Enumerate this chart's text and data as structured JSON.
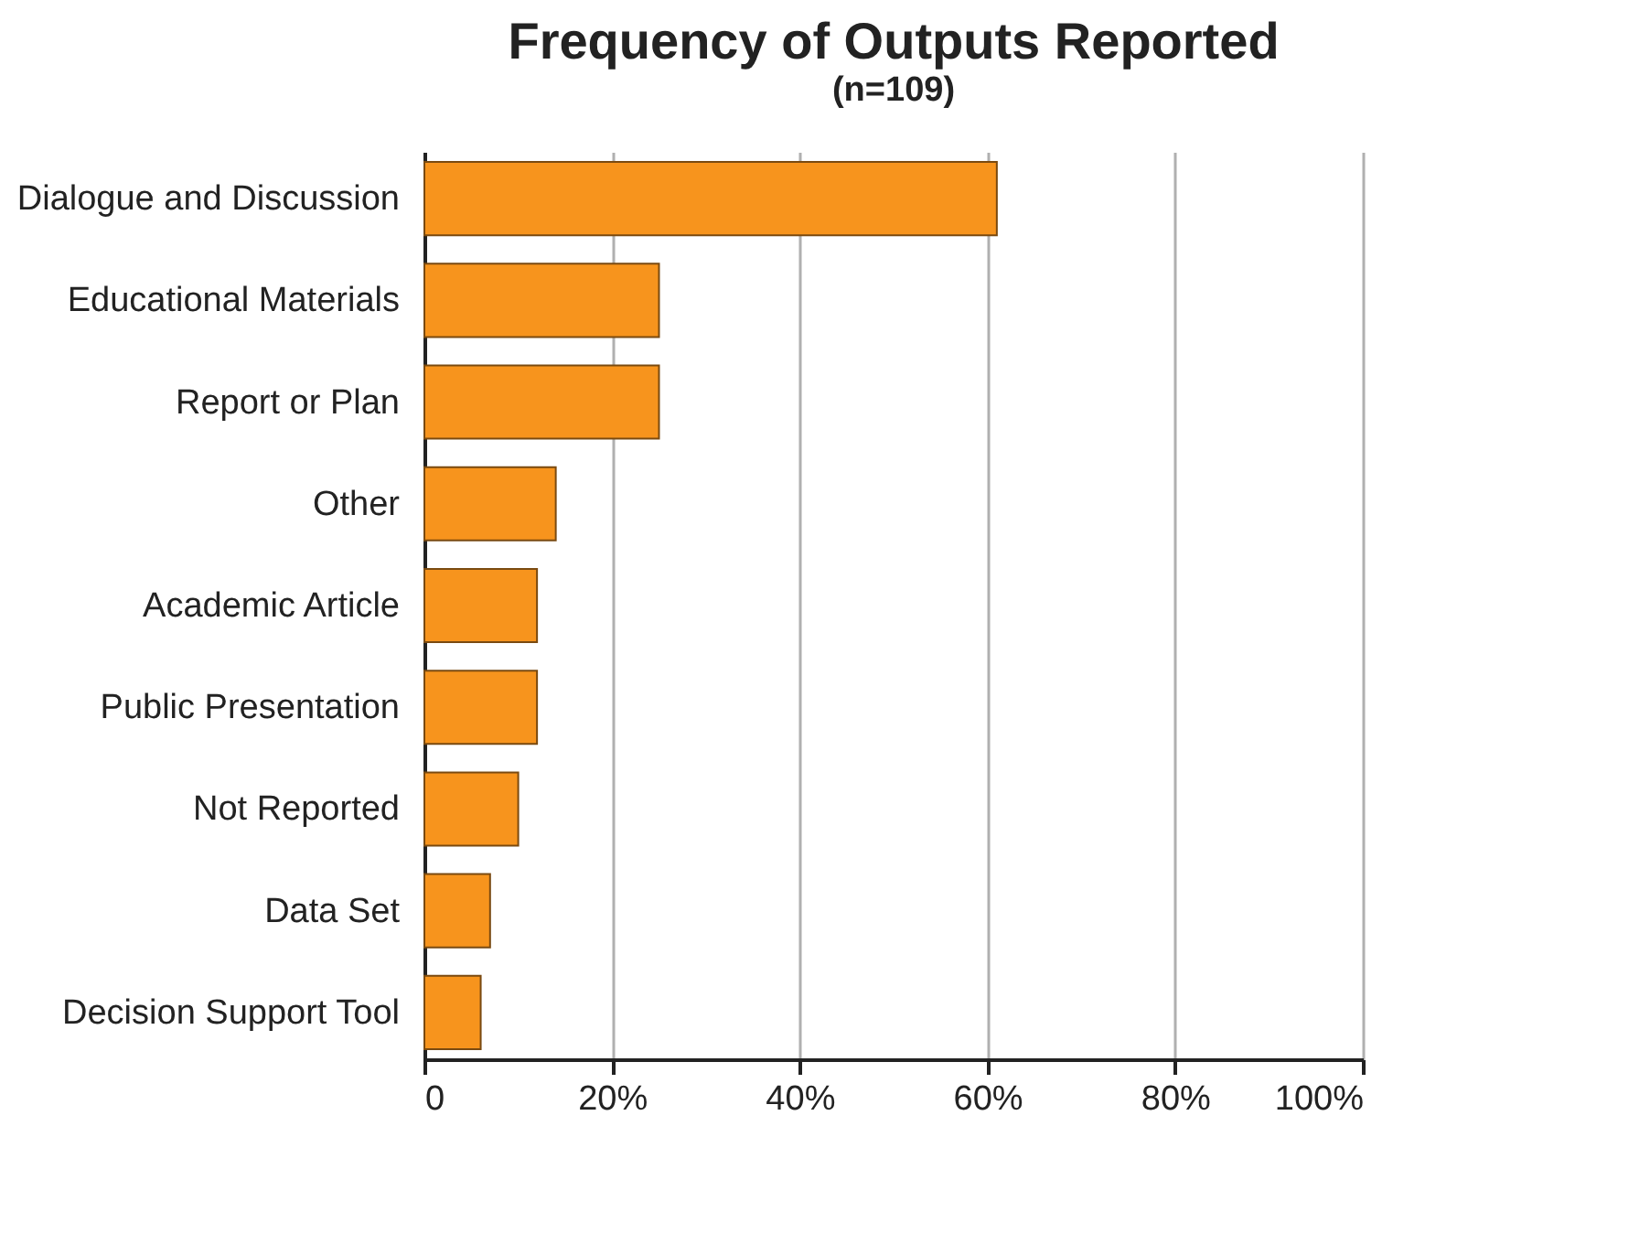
{
  "chart_data": {
    "type": "bar",
    "orientation": "horizontal",
    "title": "Frequency of Outputs Reported",
    "subtitle": "(n=109)",
    "categories": [
      "Dialogue and Discussion",
      "Educational Materials",
      "Report or Plan",
      "Other",
      "Academic Article",
      "Public Presentation",
      "Not Reported",
      "Data Set",
      "Decision Support Tool"
    ],
    "values": [
      61,
      25,
      25,
      14,
      12,
      12,
      10,
      7,
      6
    ],
    "color": "#f7941d",
    "xlim": [
      0,
      100
    ],
    "xticks": [
      0,
      {
        "value": 20,
        "label": "20%"
      },
      {
        "value": 40,
        "label": "40%"
      },
      {
        "value": 60,
        "label": "60%"
      },
      {
        "value": 80,
        "label": "80%"
      },
      {
        "value": 100,
        "label": "100%"
      }
    ],
    "grid": "x"
  }
}
